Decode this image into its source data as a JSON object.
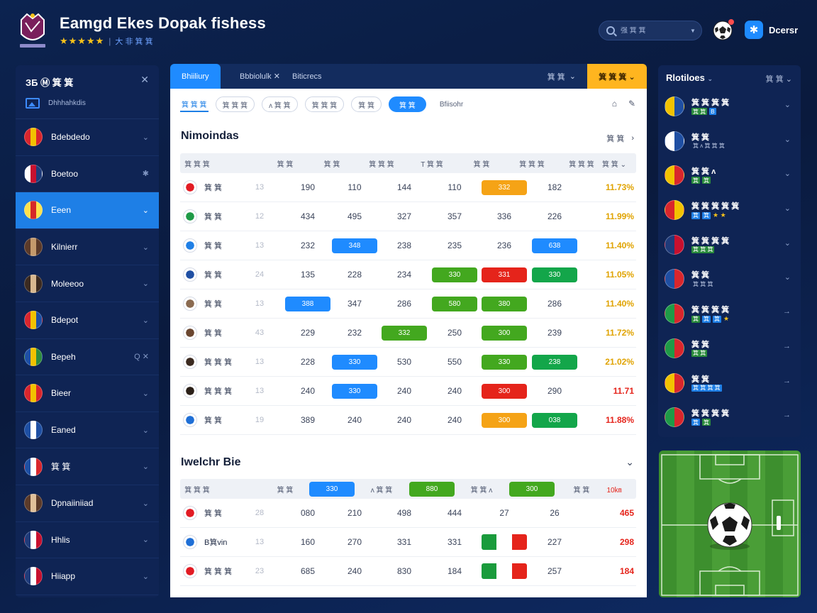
{
  "header": {
    "title": "Eamgd Ekes Dopak fishess",
    "stars": "★★★★★",
    "rating_label": "大 非 箕 箕",
    "search_placeholder": "强 箕 箕",
    "user_name": "Dcersr",
    "user_logo_glyph": "✱"
  },
  "sidebar": {
    "title": "ЗБ Ⓜ 箕 箕",
    "tools": "✕",
    "sub_label": "Dhhhahkdis",
    "items": [
      {
        "label": "Bdebdedo",
        "flag": [
          "#d9262c",
          "#f2c200",
          "#d9262c"
        ],
        "active": false,
        "chev": "⌄"
      },
      {
        "label": "Boetoo",
        "flag": [
          "#ffffff",
          "#c8102e",
          "#1f3b7a"
        ],
        "active": false,
        "chev": "✱"
      },
      {
        "label": "Eeen",
        "flag": [
          "#ffe14d",
          "#d62828",
          "#ffe14d"
        ],
        "active": true,
        "chev": "⌄"
      },
      {
        "label": "Kilnierr",
        "flag": [
          "#5b3a29",
          "#c49a6c",
          "#5b3a29"
        ],
        "active": false,
        "chev": "⌄"
      },
      {
        "label": "Moleeoo",
        "flag": [
          "#3b2a20",
          "#d8b890",
          "#3b2a20"
        ],
        "active": false,
        "chev": "⌄"
      },
      {
        "label": "Bdepot",
        "flag": [
          "#d9262c",
          "#f2c200",
          "#1e4fa3"
        ],
        "active": false,
        "chev": "⌄"
      },
      {
        "label": "Bepeh",
        "flag": [
          "#1e4fa3",
          "#f2c200",
          "#2e8b3e"
        ],
        "active": false,
        "chev": "Q ✕"
      },
      {
        "label": "Bieer",
        "flag": [
          "#d9262c",
          "#f2c200",
          "#d9262c"
        ],
        "active": false,
        "chev": "⌄"
      },
      {
        "label": "Eaned",
        "flag": [
          "#1e4fa3",
          "#ffffff",
          "#1e4fa3"
        ],
        "active": false,
        "chev": "⌄"
      },
      {
        "label": "箕 箕",
        "flag": [
          "#1e4fa3",
          "#ffffff",
          "#d9262c"
        ],
        "active": false,
        "chev": "⌄"
      },
      {
        "label": "Dpnaiiniiad",
        "flag": [
          "#5b3a29",
          "#e0c09a",
          "#5b3a29"
        ],
        "active": false,
        "chev": "⌄"
      },
      {
        "label": "Hhlis",
        "flag": [
          "#1f3b7a",
          "#ffffff",
          "#c8102e"
        ],
        "active": false,
        "chev": "⌄"
      },
      {
        "label": "Hiiapp",
        "flag": [
          "#1f3b7a",
          "#ffffff",
          "#c8102e"
        ],
        "active": false,
        "chev": "⌄"
      }
    ]
  },
  "tabs": {
    "active": "Bhiiliury",
    "tab2": "Bbbiolulk ✕",
    "tab3": "Biticrecs",
    "right_label": "箕 箕",
    "right_caret": "⌄",
    "highlight": "箕 箕 箕 ⌄"
  },
  "filters": {
    "chips": [
      "箕 箕 箕",
      "箕 箕 箕",
      "ᴧ 箕 箕",
      "箕 箕 箕",
      "箕 箕",
      "箕 箕"
    ],
    "last": "Bfiisohr",
    "icon1": "⌂",
    "icon2": "✎"
  },
  "section1": {
    "title": "Nimoindas",
    "link": "箕 箕",
    "arrow": "›",
    "headers": [
      "箕 箕 箕",
      "箕 箕",
      "箕 箕",
      "箕 箕 箕",
      "T 箕 箕",
      "箕 箕",
      "箕 箕 箕",
      "箕 箕 箕",
      "箕 箕 ⌄"
    ],
    "rows": [
      {
        "icon": "#e21b23",
        "name": "箕 箕",
        "rank": "13",
        "v": [
          "190",
          "110",
          "144",
          "110",
          "332",
          "182"
        ],
        "pills": {
          "4": "#f5a316"
        },
        "pct": "11.73%",
        "pctColor": "#e0a300"
      },
      {
        "icon": "#1f9a47",
        "name": "箕 箕",
        "rank": "12",
        "v": [
          "434",
          "495",
          "327",
          "357",
          "336",
          "226"
        ],
        "pills": {},
        "pct": "11.99%",
        "pctColor": "#e0a300"
      },
      {
        "icon": "#1f7fe6",
        "name": "箕 箕",
        "rank": "13",
        "v": [
          "232",
          "348",
          "238",
          "235",
          "236",
          "638"
        ],
        "pills": {
          "1": "#1f8bff",
          "5": "#1f8bff"
        },
        "pct": "11.40%",
        "pctColor": "#e0a300"
      },
      {
        "icon": "#1f4fa3",
        "name": "箕 箕",
        "rank": "24",
        "v": [
          "135",
          "228",
          "234",
          "330",
          "331",
          "330"
        ],
        "pills": {
          "3": "#43a81f",
          "4": "#e5241b",
          "5": "#13a64a"
        },
        "pct": "11.05%",
        "pctColor": "#e0a300"
      },
      {
        "icon": "#8a6a50",
        "name": "箕 箕",
        "rank": "13",
        "v": [
          "388",
          "347",
          "286",
          "580",
          "380",
          "286"
        ],
        "pills": {
          "0": "#1f8bff",
          "3": "#43a81f",
          "4": "#43a81f"
        },
        "pct": "11.40%",
        "pctColor": "#e0a300"
      },
      {
        "icon": "#6a4630",
        "name": "箕 箕",
        "rank": "43",
        "v": [
          "229",
          "232",
          "332",
          "250",
          "300",
          "239"
        ],
        "pills": {
          "2": "#43a81f",
          "4": "#43a81f"
        },
        "pct": "11.72%",
        "pctColor": "#e0a300"
      },
      {
        "icon": "#3b2a20",
        "name": "箕 箕 箕",
        "rank": "13",
        "v": [
          "228",
          "330",
          "530",
          "550",
          "330",
          "238"
        ],
        "pills": {
          "1": "#1f8bff",
          "4": "#43a81f",
          "5": "#13a64a"
        },
        "pct": "21.02%",
        "pctColor": "#e0a300"
      },
      {
        "icon": "#2b2018",
        "name": "箕 箕 箕",
        "rank": "13",
        "v": [
          "240",
          "330",
          "240",
          "240",
          "300",
          "290"
        ],
        "pills": {
          "1": "#1f8bff",
          "4": "#e5241b"
        },
        "pct": "11.71",
        "pctColor": "#e5241b"
      },
      {
        "icon": "#1f6fd6",
        "name": "箕 箕",
        "rank": "19",
        "v": [
          "389",
          "240",
          "240",
          "240",
          "300",
          "038"
        ],
        "pills": {
          "4": "#f5a316",
          "5": "#13a64a"
        },
        "pct": "11.88%",
        "pctColor": "#e5241b"
      }
    ]
  },
  "section2": {
    "title": "Iwelchr Bie",
    "caret": "⌄",
    "headers": [
      "箕 箕 箕",
      "箕 箕",
      "330",
      "ᴧ 箕 箕",
      "880",
      "箕 箕 ᴧ",
      "300",
      "箕 箕",
      "10㎞"
    ],
    "rows": [
      {
        "icon": "#e21b23",
        "name": "箕 箕",
        "rank": "28",
        "v": [
          "080",
          "210",
          "498",
          "444",
          "27",
          "26"
        ],
        "pct": "465"
      },
      {
        "icon": "#1f6fd6",
        "name": "B箕vin",
        "rank": "13",
        "v": [
          "160",
          "270",
          "331",
          "331",
          "flag",
          "227"
        ],
        "pct": "298"
      },
      {
        "icon": "#e21b23",
        "name": "箕 箕 箕",
        "rank": "23",
        "v": [
          "685",
          "240",
          "830",
          "184",
          "flag",
          "257"
        ],
        "pct": "184"
      }
    ]
  },
  "right_panel": {
    "title": "Rlotiloes",
    "title_caret": "⌄",
    "right": "箕 箕 ⌄",
    "items": [
      {
        "name": "箕 箕 箕 箕",
        "badge": [
          "#f2c200",
          "#1f4fa3"
        ],
        "tags": [
          "箕 箕",
          "B"
        ],
        "tagColors": [
          "#2a8b3c",
          "#1f7fe6"
        ],
        "stars": "",
        "arrow": "⌄"
      },
      {
        "name": "箕 箕",
        "badge": [
          "#ffffff",
          "#1f4fa3"
        ],
        "tags": [
          "箕 ᴧ 箕 箕 箕"
        ],
        "tagColors": [
          "transparent"
        ],
        "stars": "",
        "arrow": "⌄"
      },
      {
        "name": "箕 箕 ᴧ",
        "badge": [
          "#f2c200",
          "#d9262c"
        ],
        "tags": [
          "箕",
          "箕"
        ],
        "tagColors": [
          "#2a8b3c",
          "#2a8b3c"
        ],
        "stars": "",
        "arrow": "⌄"
      },
      {
        "name": "箕 箕 箕 箕 箕",
        "badge": [
          "#d9262c",
          "#f2c200"
        ],
        "tags": [
          "箕",
          "箕"
        ],
        "tagColors": [
          "#1f7fe6",
          "#1f7fe6"
        ],
        "stars": "★ ★",
        "arrow": "⌄"
      },
      {
        "name": "箕 箕 箕 箕",
        "badge": [
          "#1f3b7a",
          "#c8102e"
        ],
        "tags": [
          "箕 箕 箕"
        ],
        "tagColors": [
          "#2a8b3c"
        ],
        "stars": "",
        "arrow": "⌄"
      },
      {
        "name": "箕 箕",
        "badge": [
          "#1f4fa3",
          "#d9262c"
        ],
        "tags": [
          "箕 箕 箕"
        ],
        "tagColors": [
          "transparent"
        ],
        "stars": "",
        "arrow": "⌄"
      },
      {
        "name": "箕 箕 箕 箕",
        "badge": [
          "#1f9a47",
          "#d9262c"
        ],
        "tags": [
          "箕",
          "箕",
          "箕"
        ],
        "tagColors": [
          "#2a8b3c",
          "#1f7fe6",
          "#1f7fe6"
        ],
        "stars": "★",
        "arrow": "→"
      },
      {
        "name": "箕 箕",
        "badge": [
          "#1f9a47",
          "#d9262c"
        ],
        "tags": [
          "箕 箕"
        ],
        "tagColors": [
          "#2a8b3c"
        ],
        "stars": "",
        "arrow": "→"
      },
      {
        "name": "箕 箕",
        "badge": [
          "#f2c200",
          "#d9262c"
        ],
        "tags": [
          "箕 箕 箕 箕"
        ],
        "tagColors": [
          "#1f7fe6"
        ],
        "stars": "",
        "arrow": "→"
      },
      {
        "name": "箕 箕 箕 箕",
        "badge": [
          "#1f9a47",
          "#d9262c"
        ],
        "tags": [
          "箕",
          "箕"
        ],
        "tagColors": [
          "#1f7fe6",
          "#2a8b3c"
        ],
        "stars": "",
        "arrow": "→"
      }
    ]
  },
  "colors": {
    "accent": "#1f8bff",
    "highlight": "#ffb51f",
    "green": "#43a81f",
    "red": "#e5241b",
    "orange": "#f5a316"
  }
}
